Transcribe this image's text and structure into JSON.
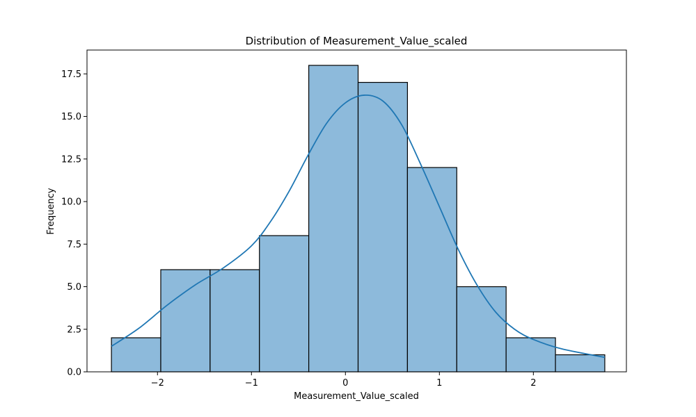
{
  "chart_data": {
    "type": "bar",
    "title": "Distribution of Measurement_Value_scaled",
    "xlabel": "Measurement_Value_scaled",
    "ylabel": "Frequency",
    "xlim": [
      -2.75,
      2.99
    ],
    "ylim": [
      0,
      18.9
    ],
    "x_ticks": [
      -2,
      -1,
      0,
      1,
      2
    ],
    "x_tick_labels": [
      "−2",
      "−1",
      "0",
      "1",
      "2"
    ],
    "y_ticks": [
      0,
      2.5,
      5,
      7.5,
      10,
      12.5,
      15,
      17.5
    ],
    "y_tick_labels": [
      "0.0",
      "2.5",
      "5.0",
      "7.5",
      "10.0",
      "12.5",
      "15.0",
      "17.5"
    ],
    "bin_edges": [
      -2.49,
      -1.965,
      -1.44,
      -0.915,
      -0.39,
      0.135,
      0.66,
      1.185,
      1.71,
      2.235,
      2.76
    ],
    "values": [
      2,
      6,
      6,
      8,
      18,
      17,
      12,
      5,
      2,
      1
    ],
    "kde": {
      "x": [
        -2.49,
        -2.2,
        -1.9,
        -1.6,
        -1.3,
        -1.0,
        -0.8,
        -0.6,
        -0.4,
        -0.2,
        0.0,
        0.2,
        0.4,
        0.6,
        0.8,
        1.0,
        1.2,
        1.4,
        1.6,
        1.8,
        2.0,
        2.3,
        2.76
      ],
      "y": [
        1.5,
        2.55,
        3.9,
        5.1,
        6.1,
        7.4,
        8.8,
        10.6,
        12.7,
        14.6,
        15.8,
        16.25,
        15.9,
        14.5,
        12.2,
        9.7,
        7.2,
        5.1,
        3.5,
        2.5,
        1.9,
        1.35,
        0.85
      ]
    },
    "colors": {
      "bar_fill": "#8dbadb",
      "bar_edge": "#000000",
      "kde_line": "#1f77b4",
      "axes": "#000000",
      "background": "#ffffff"
    },
    "grid": false,
    "legend": "none"
  }
}
